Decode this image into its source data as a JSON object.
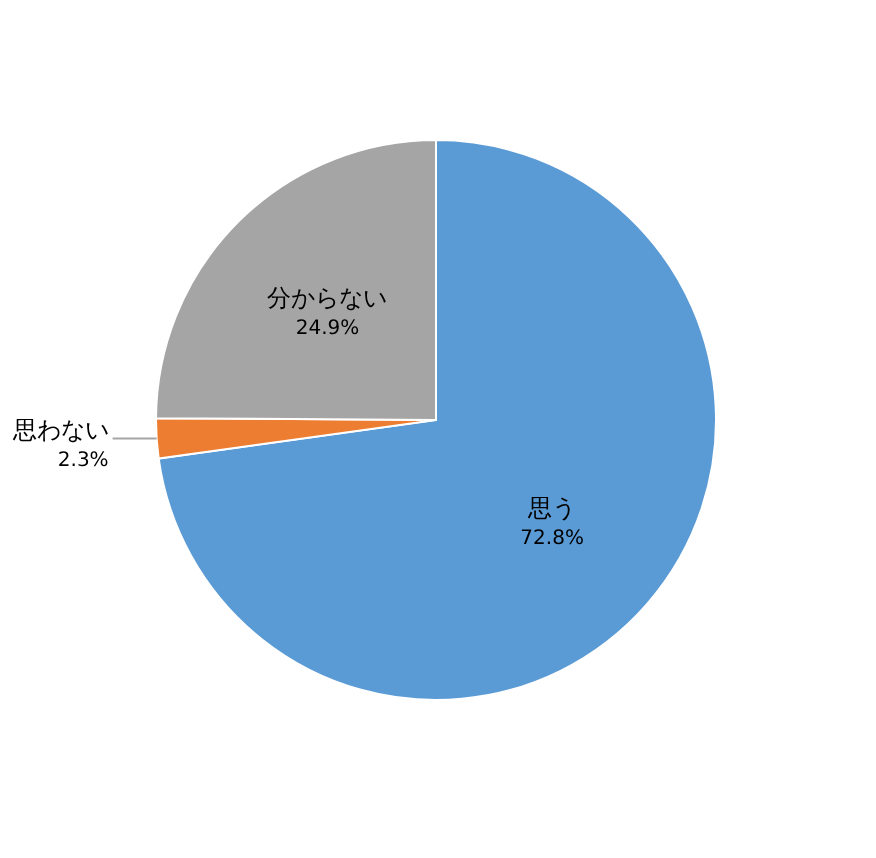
{
  "chart_data": {
    "type": "pie",
    "categories": [
      "思う",
      "思わない",
      "分からない"
    ],
    "values": [
      72.8,
      2.3,
      24.9
    ],
    "colors": [
      "#5b9bd5",
      "#ed7d31",
      "#a5a5a5"
    ],
    "value_labels": [
      "72.8%",
      "2.3%",
      "24.9%"
    ],
    "legend": false
  }
}
